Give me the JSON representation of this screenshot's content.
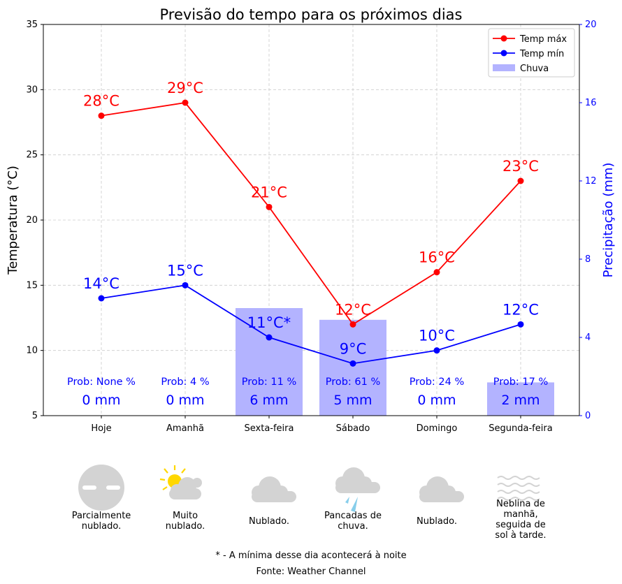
{
  "chart_data": {
    "type": "line",
    "title": "Previsão do tempo para os próximos dias",
    "ylabel": "Temperatura (°C)",
    "y2label": "Precipitação (mm)",
    "ylim": [
      5,
      35
    ],
    "y2lim": [
      0,
      20
    ],
    "yticks": [
      "5",
      "10",
      "15",
      "20",
      "25",
      "30",
      "35"
    ],
    "y2ticks": [
      "0",
      "4",
      "8",
      "12",
      "16",
      "20"
    ],
    "grid": true,
    "legend_position": "top-right",
    "categories": [
      "Hoje",
      "Amanhã",
      "Sexta-feira",
      "Sábado",
      "Domingo",
      "Segunda-feira"
    ],
    "series": [
      {
        "name": "Temp máx",
        "color": "#ff0000",
        "values": [
          28,
          29,
          21,
          12,
          16,
          23
        ],
        "labels": [
          "28°C",
          "29°C",
          "21°C",
          "12°C",
          "16°C",
          "23°C"
        ]
      },
      {
        "name": "Temp mín",
        "color": "#0000ff",
        "values": [
          14,
          15,
          11,
          9,
          10,
          12
        ],
        "labels": [
          "14°C",
          "15°C",
          "11°C*",
          "9°C",
          "10°C",
          "12°C"
        ]
      }
    ],
    "bars": {
      "name": "Chuva",
      "color": "#b3b3ff",
      "values": [
        0,
        0,
        5.5,
        4.9,
        0,
        1.7
      ]
    },
    "precip_labels": [
      "0 mm",
      "0 mm",
      "6 mm",
      "5 mm",
      "0 mm",
      "2 mm"
    ],
    "prob_labels": [
      "Prob: None %",
      "Prob: 4 %",
      "Prob: 11 %",
      "Prob: 61 %",
      "Prob: 24 %",
      "Prob: 17 %"
    ]
  },
  "conditions": [
    {
      "icon": "fog-circle-icon",
      "text": "Parcialmente\nnublado."
    },
    {
      "icon": "sun-cloud-icon",
      "text": "Muito\nnublado."
    },
    {
      "icon": "cloud-icon",
      "text": "Nublado."
    },
    {
      "icon": "rain-cloud-icon",
      "text": "Pancadas de\nchuva."
    },
    {
      "icon": "cloud-icon",
      "text": "Nublado."
    },
    {
      "icon": "fog-waves-icon",
      "text": "Neblina de\nmanhã,\nseguida de\nsol à tarde."
    }
  ],
  "footnote": "* - A mínima desse dia acontecerá à noite",
  "source": "Fonte: Weather Channel"
}
